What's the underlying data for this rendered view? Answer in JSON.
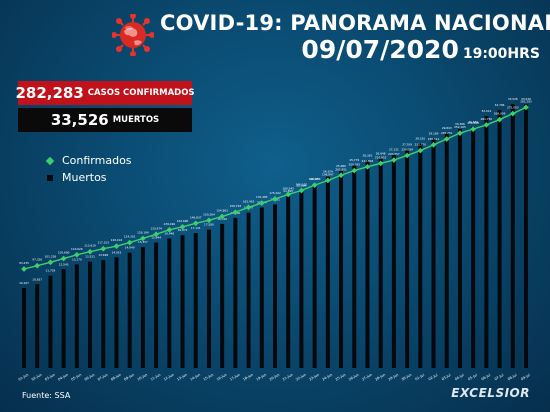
{
  "header": {
    "title": "COVID-19: PANORAMA NACIONAL",
    "date": "09/07/2020",
    "time": "19:00HRS"
  },
  "totals": {
    "confirmed_value": "282,283",
    "confirmed_label": "CASOS CONFIRMADOS",
    "deaths_value": "33,526",
    "deaths_label": "MUERTOS"
  },
  "legend": {
    "confirmed": "Confirmados",
    "deaths": "Muertos"
  },
  "footer": {
    "source": "Fuente: SSA",
    "brand": "EXCELSIOR"
  },
  "colors": {
    "confirmed_line": "#3ccf6e",
    "death_bars": "#05080c",
    "red_box": "#c1121b"
  },
  "chart_data": {
    "type": "bar",
    "categories": [
      "01-Jun",
      "02-Jun",
      "03-Jun",
      "04-Jun",
      "05-Jun",
      "06-Jun",
      "07-Jun",
      "08-Jun",
      "09-Jun",
      "10-Jun",
      "11-Jun",
      "12-Jun",
      "13-Jun",
      "14-Jun",
      "15-Jun",
      "16-Jun",
      "17-Jun",
      "18-Jun",
      "19-Jun",
      "20-Jun",
      "21-Jun",
      "22-Jun",
      "23-Jun",
      "24-Jun",
      "25-Jun",
      "26-Jun",
      "27-Jun",
      "28-Jun",
      "29-Jun",
      "30-Jun",
      "01-Jul",
      "02-Jul",
      "03-Jul",
      "04-Jul",
      "05-Jul",
      "06-Jul",
      "07-Jul",
      "08-Jul",
      "09-Jul"
    ],
    "series": [
      {
        "name": "Confirmados",
        "type": "line",
        "values": [
          93435,
          97326,
          101238,
          105680,
          110026,
          113619,
          117103,
          120102,
          124301,
          129184,
          133974,
          139196,
          142690,
          146837,
          150264,
          154863,
          159793,
          165455,
          170485,
          175202,
          180545,
          185122,
          191410,
          196847,
          202951,
          208392,
          212802,
          216852,
          220657,
          226089,
          231770,
          238511,
          245251,
          252165,
          256848,
          261750,
          268008,
          275003,
          282283
        ]
      },
      {
        "name": "Muertos",
        "type": "bar",
        "values": [
          10167,
          10637,
          11729,
          12545,
          13170,
          13511,
          13699,
          14053,
          14649,
          15357,
          15944,
          16448,
          16872,
          17141,
          17580,
          18310,
          19080,
          19747,
          20394,
          20781,
          21825,
          22584,
          23377,
          24324,
          25060,
          25779,
          26381,
          26648,
          27121,
          27769,
          28510,
          29189,
          29843,
          30366,
          30639,
          32014,
          32796,
          33526,
          33526
        ]
      }
    ],
    "confirmed_labels": [
      "93,435",
      "97,326",
      "101,238",
      "105,680",
      "110,026",
      "113,619",
      "117,103",
      "120,102",
      "124,301",
      "129,184",
      "133,974",
      "139,196",
      "142,690",
      "146,837",
      "150,264",
      "154,863",
      "159,793",
      "165,455",
      "170,485",
      "175,202",
      "180,545",
      "185,122",
      "191,410",
      "196,847",
      "202,951",
      "208,392",
      "212,802",
      "216,852",
      "220,657",
      "226,089",
      "231,770",
      "238,511",
      "245,251",
      "252,165",
      "256,848",
      "261,750",
      "268,008",
      "275,003",
      "282,283"
    ],
    "death_labels": [
      "10,167",
      "10,637",
      "11,729",
      "12,545",
      "13,170",
      "13,511",
      "13,699",
      "14,053",
      "14,649",
      "15,357",
      "15,944",
      "16,448",
      "16,872",
      "17,141",
      "17,580",
      "18,310",
      "19,080",
      "19,747",
      "20,394",
      "20,781",
      "21,825",
      "22,584",
      "23,377",
      "24,324",
      "25,060",
      "25,779",
      "26,381",
      "26,648",
      "27,121",
      "27,769",
      "28,510",
      "29,189",
      "29,843",
      "30,366",
      "30,639",
      "32,014",
      "32,796",
      "33,526",
      "33,526"
    ],
    "grid": false,
    "legend_position": "top-left"
  }
}
